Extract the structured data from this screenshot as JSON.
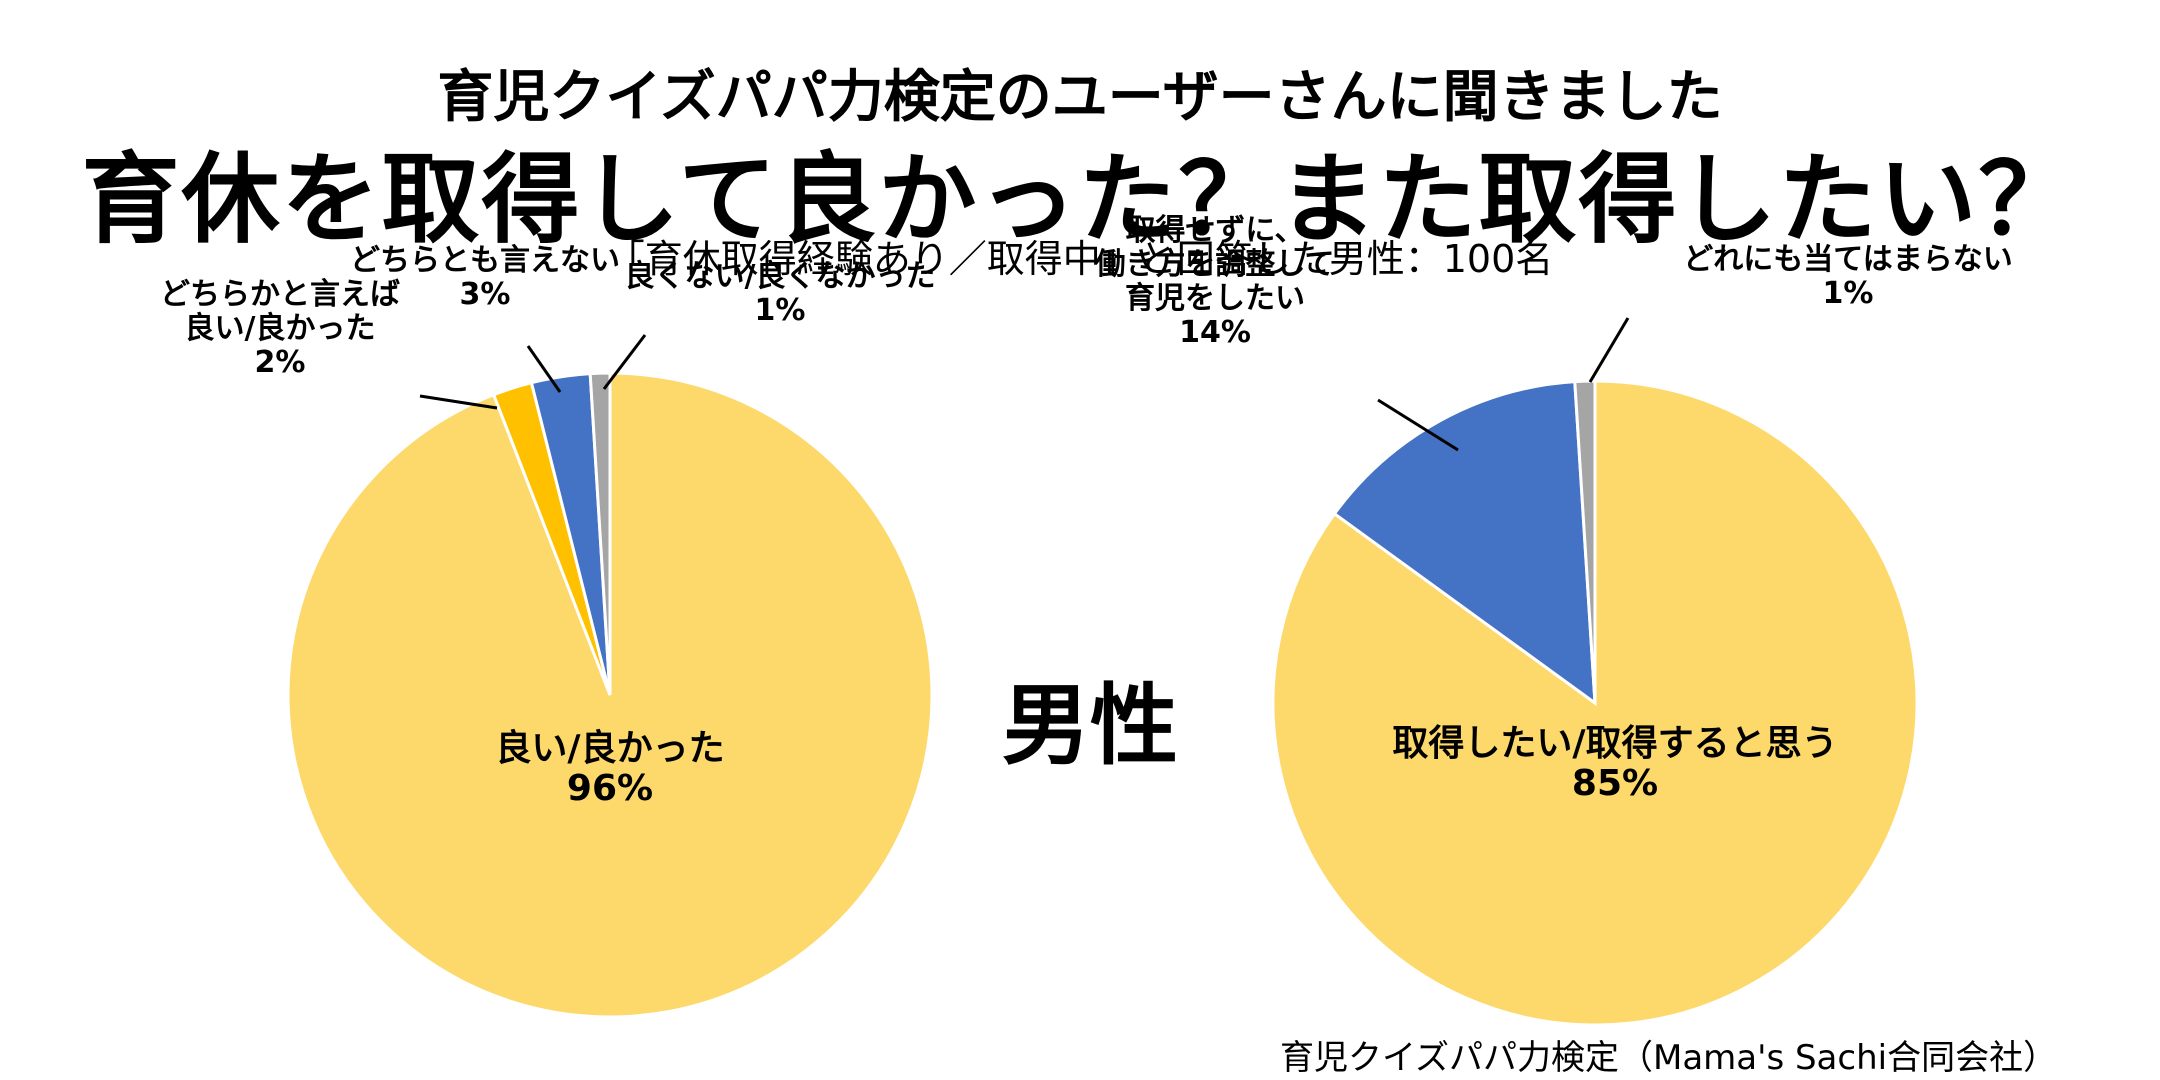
{
  "header": {
    "line1": "育児クイズパパ力検定のユーザーさんに聞きました",
    "line2": "育休を取得して良かった？また取得したい？",
    "line3": "「育休取得経験あり／取得中」と回答した男性：100名"
  },
  "gender_label": "男性",
  "source": "育児クイズパパ力検定（Mama's Sachi合同会社）",
  "chart_data": [
    {
      "type": "pie",
      "slices": [
        {
          "label": [
            "良い/良かった"
          ],
          "value": 96,
          "value_label": "96%",
          "color": "#FDD86B"
        },
        {
          "label": [
            "どちらかと言えば",
            "良い/良かった"
          ],
          "value": 2,
          "value_label": "2%",
          "color": "#FFC000"
        },
        {
          "label": [
            "どちらとも言えない"
          ],
          "value": 3,
          "value_label": "3%",
          "color": "#4472C4"
        },
        {
          "label": [
            "良くない/良くなかった"
          ],
          "value": 1,
          "value_label": "1%",
          "color": "#A5A5A5"
        }
      ]
    },
    {
      "type": "pie",
      "slices": [
        {
          "label": [
            "取得したい/取得すると思う"
          ],
          "value": 85,
          "value_label": "85%",
          "color": "#FDD86B"
        },
        {
          "label": [
            "取得せずに、",
            "働き方を調整して",
            "育児をしたい"
          ],
          "value": 14,
          "value_label": "14%",
          "color": "#4472C4"
        },
        {
          "label": [
            "どれにも当てはまらない"
          ],
          "value": 1,
          "value_label": "1%",
          "color": "#A5A5A5"
        }
      ]
    }
  ]
}
